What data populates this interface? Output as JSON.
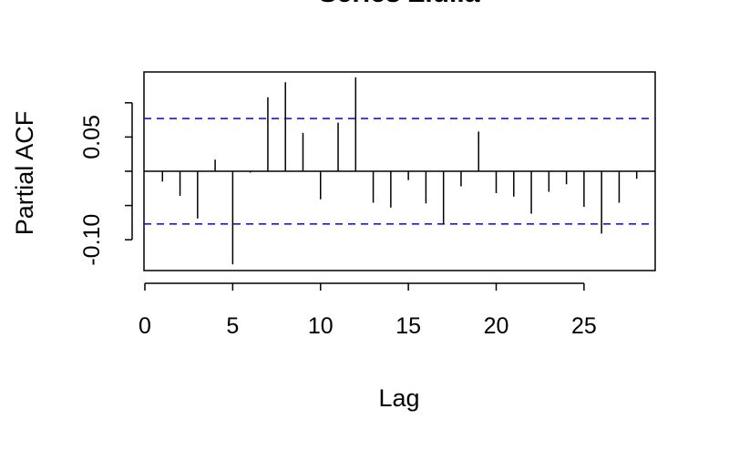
{
  "chart_data": {
    "type": "bar",
    "title": "Series  Ziulia",
    "xlabel": "Lag",
    "ylabel": "Partial ACF",
    "xlim": [
      0,
      29
    ],
    "ylim": [
      -0.145,
      0.145
    ],
    "x_ticks": [
      0,
      5,
      10,
      15,
      20,
      25
    ],
    "x_tick_labels": [
      "0",
      "5",
      "10",
      "15",
      "20",
      "25"
    ],
    "y_ticks": [
      -0.1,
      -0.05,
      0.0,
      0.05,
      0.1
    ],
    "y_tick_labels": [
      "-0.10",
      "",
      "",
      "0.05",
      ""
    ],
    "confidence_limit": 0.077,
    "confidence_line_color": "#0000ff",
    "bar_color": "#000000",
    "grid": false,
    "legend": "none",
    "x": [
      1,
      2,
      3,
      4,
      5,
      6,
      7,
      8,
      9,
      10,
      11,
      12,
      13,
      14,
      15,
      16,
      17,
      18,
      19,
      20,
      21,
      22,
      23,
      24,
      25,
      26,
      27,
      28
    ],
    "values": [
      -0.015,
      -0.036,
      -0.069,
      0.017,
      -0.136,
      -0.002,
      0.108,
      0.13,
      0.056,
      -0.041,
      0.071,
      0.137,
      -0.046,
      -0.053,
      -0.013,
      -0.047,
      -0.077,
      -0.022,
      0.058,
      -0.032,
      -0.037,
      -0.062,
      -0.03,
      -0.019,
      -0.052,
      -0.091,
      -0.046,
      -0.011
    ]
  }
}
